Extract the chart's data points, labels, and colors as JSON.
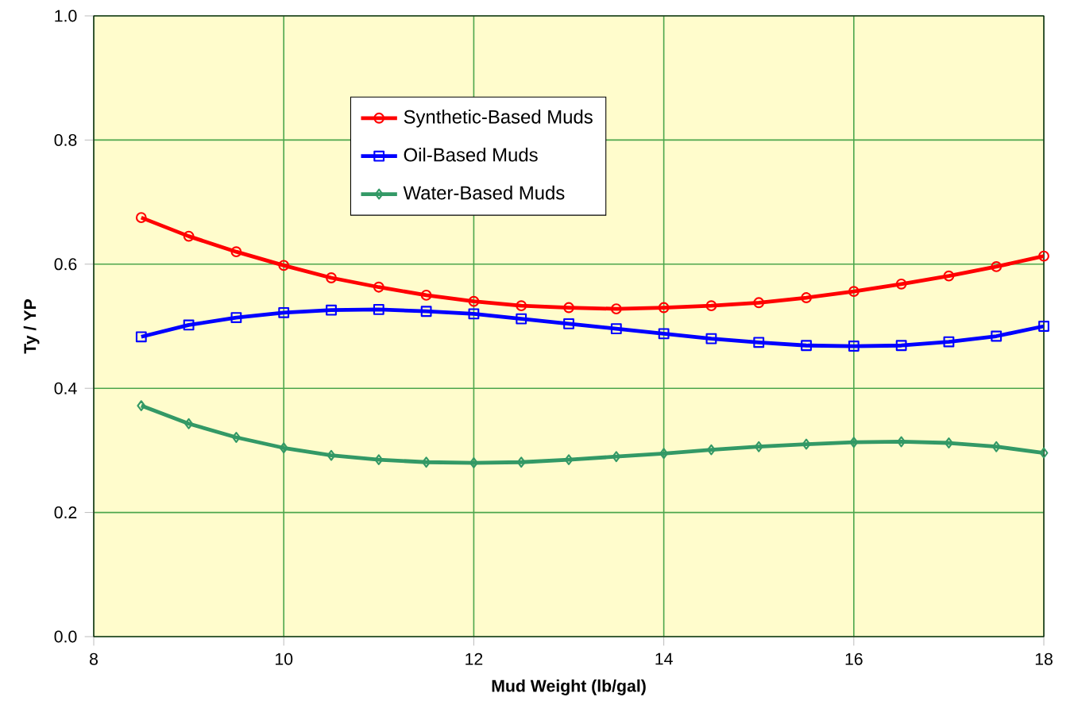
{
  "chart_data": {
    "type": "line",
    "xlabel": "Mud Weight (lb/gal)",
    "ylabel": "Ty / YP",
    "x": [
      8.5,
      9,
      9.5,
      10,
      10.5,
      11,
      11.5,
      12,
      12.5,
      13,
      13.5,
      14,
      14.5,
      15,
      15.5,
      16,
      16.5,
      17,
      17.5,
      18
    ],
    "series": [
      {
        "name": "Synthetic-Based Muds",
        "color": "#ff0000",
        "marker": "circle",
        "values": [
          0.675,
          0.645,
          0.62,
          0.598,
          0.578,
          0.563,
          0.55,
          0.54,
          0.533,
          0.53,
          0.528,
          0.53,
          0.533,
          0.538,
          0.546,
          0.556,
          0.568,
          0.581,
          0.596,
          0.613
        ]
      },
      {
        "name": "Oil-Based Muds",
        "color": "#0000ff",
        "marker": "square",
        "values": [
          0.483,
          0.502,
          0.514,
          0.522,
          0.526,
          0.527,
          0.524,
          0.52,
          0.512,
          0.504,
          0.496,
          0.488,
          0.48,
          0.474,
          0.469,
          0.468,
          0.469,
          0.475,
          0.484,
          0.5
        ]
      },
      {
        "name": "Water-Based Muds",
        "color": "#339966",
        "marker": "diamond",
        "values": [
          0.372,
          0.343,
          0.321,
          0.304,
          0.292,
          0.285,
          0.281,
          0.28,
          0.281,
          0.285,
          0.29,
          0.295,
          0.301,
          0.306,
          0.31,
          0.313,
          0.314,
          0.312,
          0.306,
          0.296
        ]
      }
    ],
    "xlim": [
      8,
      18
    ],
    "xticks": [
      8,
      10,
      12,
      14,
      16,
      18
    ],
    "ylim": [
      0,
      1.0
    ],
    "yticks": [
      {
        "value": 0,
        "label": "0.0"
      },
      0.2,
      0.4,
      0.6,
      0.8,
      {
        "value": 1.0,
        "label": "1.0"
      }
    ],
    "grid": true,
    "legend": "top",
    "line_style": "solid"
  }
}
